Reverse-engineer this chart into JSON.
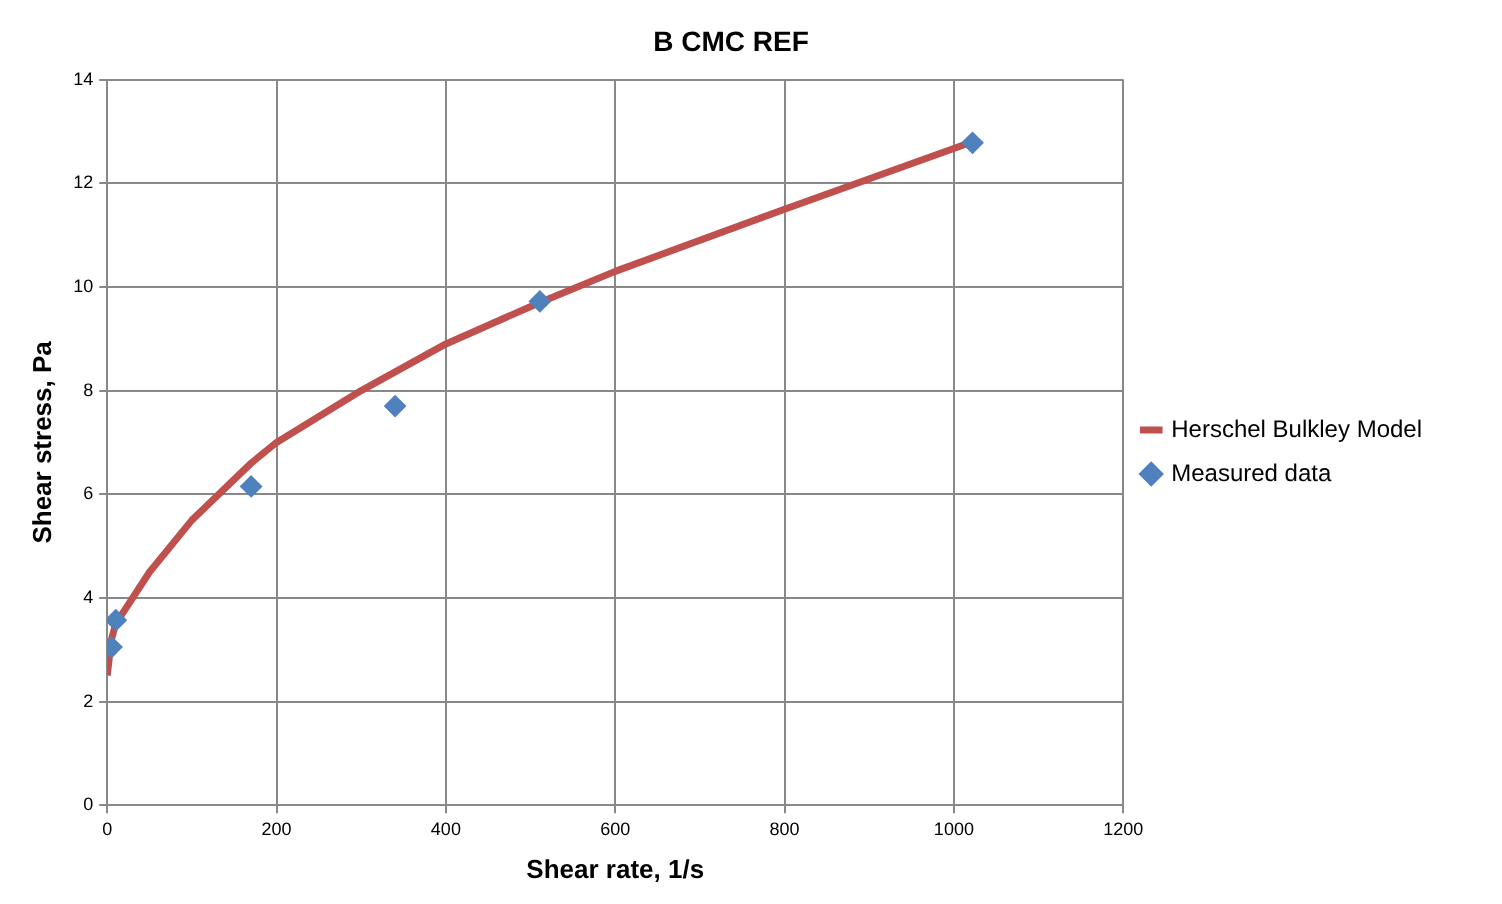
{
  "chart_data": {
    "type": "scatter",
    "title": "B CMC REF",
    "xlabel": "Shear rate, 1/s",
    "ylabel": "Shear stress, Pa",
    "xlim": [
      0,
      1200
    ],
    "xticks": [
      0,
      200,
      400,
      600,
      800,
      1000,
      1200
    ],
    "ylim": [
      0,
      14
    ],
    "yticks": [
      0,
      2,
      4,
      6,
      8,
      10,
      12,
      14
    ],
    "grid": true,
    "legend": "right",
    "series": [
      {
        "name": "Herschel Bulkley Model",
        "type": "line",
        "color": "#c0504d",
        "marker": "none",
        "x": [
          0,
          5,
          10,
          50,
          100,
          170,
          200,
          300,
          400,
          511,
          600,
          800,
          1022
        ],
        "values": [
          2.5,
          3.2,
          3.5,
          4.5,
          5.5,
          6.6,
          7.0,
          8.0,
          8.9,
          9.7,
          10.3,
          11.5,
          12.8
        ]
      },
      {
        "name": "Measured data",
        "type": "scatter",
        "color": "#4f81bd",
        "marker": "diamond",
        "x": [
          5.1,
          10.2,
          170,
          340,
          511,
          1022
        ],
        "values": [
          3.05,
          3.57,
          6.15,
          7.7,
          9.72,
          12.78
        ]
      }
    ]
  }
}
